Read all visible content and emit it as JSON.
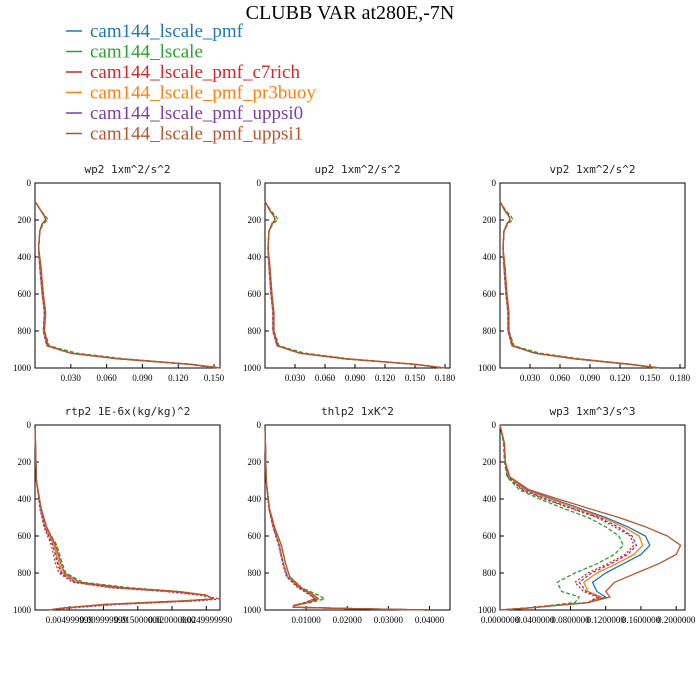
{
  "figure_title": "CLUBB VAR at280E,-7N",
  "legend": [
    {
      "label": "cam144_lscale_pmf",
      "color": "#1f77b4"
    },
    {
      "label": "cam144_lscale",
      "color": "#2ca02c"
    },
    {
      "label": "cam144_lscale_pmf_c7rich",
      "color": "#d62728"
    },
    {
      "label": "cam144_lscale_pmf_pr3buoy",
      "color": "#ff7f0e"
    },
    {
      "label": "cam144_lscale_pmf_uppsi0",
      "color": "#7b3fa0"
    },
    {
      "label": "cam144_lscale_pmf_uppsi1",
      "color": "#b5562d"
    }
  ],
  "chart_data": [
    {
      "type": "line",
      "title": "wp2 1xm^2/s^2",
      "ylim": [
        1000,
        0
      ],
      "yticks": [
        "0",
        "200",
        "400",
        "600",
        "800",
        "1000"
      ],
      "xlim": [
        0,
        0.155
      ],
      "xticks": [
        0.03,
        0.06,
        0.09,
        0.12,
        0.15
      ],
      "xtick_labels": [
        "0.030",
        "0.060",
        "0.090",
        "0.120",
        "0.150"
      ],
      "y": [
        100,
        150,
        180,
        200,
        220,
        260,
        350,
        450,
        600,
        700,
        800,
        880,
        920,
        950,
        980,
        1000
      ],
      "series": [
        {
          "values": [
            0,
            0.005,
            0.008,
            0.009,
            0.006,
            0.004,
            0.003,
            0.004,
            0.006,
            0.008,
            0.007,
            0.01,
            0.03,
            0.07,
            0.13,
            0.155
          ]
        },
        {
          "values": [
            0,
            0.005,
            0.009,
            0.011,
            0.007,
            0.004,
            0.003,
            0.004,
            0.006,
            0.008,
            0.008,
            0.012,
            0.035,
            0.075,
            0.13,
            0.15
          ]
        },
        {
          "values": [
            0,
            0.005,
            0.008,
            0.009,
            0.006,
            0.004,
            0.003,
            0.004,
            0.006,
            0.008,
            0.007,
            0.01,
            0.03,
            0.07,
            0.13,
            0.155
          ]
        },
        {
          "values": [
            0,
            0.005,
            0.008,
            0.009,
            0.006,
            0.004,
            0.003,
            0.004,
            0.006,
            0.008,
            0.007,
            0.01,
            0.03,
            0.07,
            0.13,
            0.155
          ]
        },
        {
          "values": [
            0,
            0.005,
            0.008,
            0.009,
            0.006,
            0.004,
            0.003,
            0.004,
            0.006,
            0.008,
            0.007,
            0.01,
            0.03,
            0.07,
            0.13,
            0.155
          ]
        },
        {
          "values": [
            0,
            0.005,
            0.008,
            0.009,
            0.006,
            0.004,
            0.003,
            0.005,
            0.007,
            0.009,
            0.008,
            0.011,
            0.03,
            0.07,
            0.13,
            0.155
          ]
        }
      ]
    },
    {
      "type": "line",
      "title": "up2 1xm^2/s^2",
      "ylim": [
        1000,
        0
      ],
      "yticks": [
        "0",
        "200",
        "400",
        "600",
        "800",
        "1000"
      ],
      "xlim": [
        0,
        0.185
      ],
      "xticks": [
        0.03,
        0.06,
        0.09,
        0.12,
        0.15,
        0.18
      ],
      "xtick_labels": [
        "0.030",
        "0.060",
        "0.090",
        "0.120",
        "0.150",
        "0.180"
      ],
      "y": [
        100,
        150,
        180,
        200,
        220,
        260,
        350,
        450,
        600,
        700,
        800,
        880,
        920,
        950,
        980,
        1000
      ],
      "series": [
        {
          "values": [
            0,
            0.005,
            0.009,
            0.01,
            0.007,
            0.004,
            0.003,
            0.004,
            0.006,
            0.008,
            0.008,
            0.012,
            0.035,
            0.08,
            0.15,
            0.18
          ]
        },
        {
          "values": [
            0,
            0.006,
            0.011,
            0.013,
            0.008,
            0.004,
            0.003,
            0.004,
            0.006,
            0.008,
            0.009,
            0.014,
            0.04,
            0.085,
            0.15,
            0.175
          ]
        },
        {
          "values": [
            0,
            0.005,
            0.009,
            0.01,
            0.007,
            0.004,
            0.003,
            0.004,
            0.006,
            0.008,
            0.008,
            0.012,
            0.035,
            0.08,
            0.15,
            0.18
          ]
        },
        {
          "values": [
            0,
            0.005,
            0.009,
            0.01,
            0.007,
            0.004,
            0.003,
            0.004,
            0.006,
            0.008,
            0.008,
            0.012,
            0.035,
            0.08,
            0.15,
            0.18
          ]
        },
        {
          "values": [
            0,
            0.005,
            0.009,
            0.01,
            0.007,
            0.004,
            0.003,
            0.004,
            0.006,
            0.008,
            0.008,
            0.012,
            0.035,
            0.08,
            0.15,
            0.18
          ]
        },
        {
          "values": [
            0,
            0.005,
            0.009,
            0.01,
            0.007,
            0.004,
            0.003,
            0.005,
            0.007,
            0.009,
            0.009,
            0.013,
            0.035,
            0.08,
            0.15,
            0.18
          ]
        }
      ]
    },
    {
      "type": "line",
      "title": "vp2 1xm^2/s^2",
      "ylim": [
        1000,
        0
      ],
      "yticks": [
        "0",
        "200",
        "400",
        "600",
        "800",
        "1000"
      ],
      "xlim": [
        0,
        0.185
      ],
      "xticks": [
        0.03,
        0.06,
        0.09,
        0.12,
        0.15,
        0.18
      ],
      "xtick_labels": [
        "0.030",
        "0.060",
        "0.090",
        "0.120",
        "0.150",
        "0.180"
      ],
      "y": [
        100,
        150,
        180,
        200,
        220,
        260,
        350,
        450,
        600,
        700,
        800,
        880,
        920,
        950,
        980,
        1000
      ],
      "series": [
        {
          "values": [
            0,
            0.005,
            0.009,
            0.01,
            0.007,
            0.004,
            0.003,
            0.004,
            0.006,
            0.008,
            0.008,
            0.012,
            0.035,
            0.075,
            0.13,
            0.16
          ]
        },
        {
          "values": [
            0,
            0.006,
            0.011,
            0.013,
            0.008,
            0.004,
            0.003,
            0.004,
            0.006,
            0.008,
            0.009,
            0.014,
            0.04,
            0.08,
            0.13,
            0.155
          ]
        },
        {
          "values": [
            0,
            0.005,
            0.009,
            0.01,
            0.007,
            0.004,
            0.003,
            0.004,
            0.006,
            0.008,
            0.008,
            0.012,
            0.035,
            0.075,
            0.13,
            0.16
          ]
        },
        {
          "values": [
            0,
            0.005,
            0.009,
            0.01,
            0.007,
            0.004,
            0.003,
            0.004,
            0.006,
            0.008,
            0.008,
            0.012,
            0.035,
            0.075,
            0.13,
            0.16
          ]
        },
        {
          "values": [
            0,
            0.005,
            0.009,
            0.01,
            0.007,
            0.004,
            0.003,
            0.004,
            0.006,
            0.008,
            0.008,
            0.012,
            0.035,
            0.075,
            0.13,
            0.16
          ]
        },
        {
          "values": [
            0,
            0.005,
            0.009,
            0.01,
            0.007,
            0.004,
            0.003,
            0.005,
            0.007,
            0.009,
            0.009,
            0.013,
            0.035,
            0.075,
            0.13,
            0.16
          ]
        }
      ]
    },
    {
      "type": "line",
      "title": "rtp2 1E-6x(kg/kg)^2",
      "ylim": [
        1000,
        0
      ],
      "yticks": [
        "0",
        "200",
        "400",
        "600",
        "800",
        "1000"
      ],
      "xlim": [
        0,
        0.027
      ],
      "xticks": [
        0.005,
        0.01,
        0.015,
        0.02,
        0.025
      ],
      "xtick_labels": [
        "0.004999999",
        "0.009999999",
        "0.015000000",
        "0.020000000",
        "0.0249999990"
      ],
      "y": [
        0,
        300,
        450,
        550,
        650,
        750,
        800,
        850,
        880,
        900,
        920,
        940,
        950,
        970,
        990,
        1000
      ],
      "series": [
        {
          "values": [
            0,
            0.0002,
            0.0008,
            0.0015,
            0.0028,
            0.0035,
            0.004,
            0.006,
            0.012,
            0.02,
            0.025,
            0.026,
            0.022,
            0.01,
            0.004,
            0.002
          ]
        },
        {
          "values": [
            0,
            0.0002,
            0.0008,
            0.0016,
            0.0032,
            0.004,
            0.0045,
            0.007,
            0.014,
            0.021,
            0.025,
            0.026,
            0.022,
            0.01,
            0.004,
            0.002
          ]
        },
        {
          "values": [
            0,
            0.0002,
            0.0007,
            0.0013,
            0.0024,
            0.003,
            0.0035,
            0.0055,
            0.011,
            0.019,
            0.024,
            0.027,
            0.024,
            0.012,
            0.005,
            0.002
          ]
        },
        {
          "values": [
            0,
            0.0002,
            0.0008,
            0.0015,
            0.0028,
            0.0035,
            0.004,
            0.006,
            0.012,
            0.02,
            0.025,
            0.026,
            0.022,
            0.01,
            0.004,
            0.002
          ]
        },
        {
          "values": [
            0,
            0.0002,
            0.0008,
            0.0014,
            0.0026,
            0.0033,
            0.0038,
            0.0058,
            0.012,
            0.02,
            0.025,
            0.026,
            0.023,
            0.011,
            0.004,
            0.002
          ]
        },
        {
          "values": [
            0,
            0.0002,
            0.0009,
            0.0017,
            0.003,
            0.0038,
            0.0043,
            0.0065,
            0.013,
            0.021,
            0.025,
            0.026,
            0.022,
            0.01,
            0.004,
            0.002
          ]
        }
      ]
    },
    {
      "type": "line",
      "title": "thlp2 1xK^2",
      "ylim": [
        1000,
        0
      ],
      "yticks": [
        "0",
        "200",
        "400",
        "600",
        "800",
        "1000"
      ],
      "xlim": [
        0,
        0.045
      ],
      "xticks": [
        0.01,
        0.02,
        0.03,
        0.04
      ],
      "xtick_labels": [
        "0.01000",
        "0.02000",
        "0.03000",
        "0.04000"
      ],
      "y": [
        0,
        300,
        450,
        550,
        650,
        750,
        820,
        880,
        920,
        940,
        960,
        975,
        985,
        992,
        1000
      ],
      "series": [
        {
          "values": [
            0,
            0.0003,
            0.001,
            0.002,
            0.0035,
            0.0045,
            0.0055,
            0.0085,
            0.0115,
            0.0125,
            0.01,
            0.007,
            0.007,
            0.02,
            0.04
          ]
        },
        {
          "values": [
            0,
            0.0003,
            0.001,
            0.0022,
            0.004,
            0.005,
            0.006,
            0.009,
            0.013,
            0.0145,
            0.011,
            0.0075,
            0.007,
            0.02,
            0.04
          ]
        },
        {
          "values": [
            0,
            0.0003,
            0.0009,
            0.0019,
            0.0033,
            0.0043,
            0.0052,
            0.008,
            0.011,
            0.012,
            0.0095,
            0.007,
            0.0068,
            0.02,
            0.04
          ]
        },
        {
          "values": [
            0,
            0.0003,
            0.001,
            0.002,
            0.0035,
            0.0045,
            0.0055,
            0.0085,
            0.0115,
            0.0125,
            0.01,
            0.007,
            0.007,
            0.02,
            0.04
          ]
        },
        {
          "values": [
            0,
            0.0003,
            0.001,
            0.002,
            0.0034,
            0.0044,
            0.0054,
            0.0083,
            0.0112,
            0.0122,
            0.0098,
            0.007,
            0.0069,
            0.02,
            0.04
          ]
        },
        {
          "values": [
            0,
            0.0003,
            0.0011,
            0.0023,
            0.004,
            0.005,
            0.006,
            0.0088,
            0.012,
            0.013,
            0.0105,
            0.0072,
            0.007,
            0.02,
            0.04
          ]
        }
      ]
    },
    {
      "type": "line",
      "title": "wp3 1xm^3/s^3",
      "ylim": [
        1000,
        0
      ],
      "yticks": [
        "0",
        "200",
        "400",
        "600",
        "800",
        "1000"
      ],
      "xlim": [
        0,
        0.21
      ],
      "xticks": [
        0,
        0.04,
        0.08,
        0.12,
        0.16,
        0.2
      ],
      "xtick_labels": [
        "0.0000000",
        "0.0400000",
        "0.0800000",
        "0.1200000",
        "0.1600000",
        "0.2000000"
      ],
      "y": [
        0,
        100,
        200,
        280,
        350,
        400,
        450,
        500,
        550,
        600,
        650,
        700,
        750,
        800,
        850,
        900,
        930,
        960,
        990,
        1000
      ],
      "series": [
        {
          "values": [
            0,
            0.005,
            0.006,
            0.01,
            0.03,
            0.06,
            0.09,
            0.12,
            0.145,
            0.165,
            0.17,
            0.16,
            0.14,
            0.12,
            0.105,
            0.11,
            0.12,
            0.1,
            0.03,
            0
          ]
        },
        {
          "values": [
            0,
            0.004,
            0.005,
            0.008,
            0.022,
            0.045,
            0.072,
            0.1,
            0.12,
            0.135,
            0.14,
            0.13,
            0.11,
            0.085,
            0.065,
            0.07,
            0.09,
            0.085,
            0.03,
            0
          ]
        },
        {
          "values": [
            0,
            0.005,
            0.006,
            0.009,
            0.025,
            0.05,
            0.08,
            0.11,
            0.13,
            0.148,
            0.152,
            0.142,
            0.122,
            0.1,
            0.085,
            0.095,
            0.11,
            0.1,
            0.03,
            0
          ]
        },
        {
          "values": [
            0,
            0.005,
            0.006,
            0.01,
            0.028,
            0.057,
            0.087,
            0.116,
            0.14,
            0.158,
            0.162,
            0.152,
            0.132,
            0.11,
            0.095,
            0.1,
            0.115,
            0.1,
            0.03,
            0
          ]
        },
        {
          "values": [
            0,
            0.005,
            0.006,
            0.009,
            0.026,
            0.052,
            0.082,
            0.112,
            0.134,
            0.15,
            0.155,
            0.145,
            0.126,
            0.104,
            0.09,
            0.098,
            0.112,
            0.1,
            0.03,
            0
          ]
        },
        {
          "values": [
            0,
            0.005,
            0.006,
            0.011,
            0.033,
            0.066,
            0.1,
            0.135,
            0.165,
            0.19,
            0.205,
            0.2,
            0.18,
            0.155,
            0.13,
            0.12,
            0.125,
            0.1,
            0.03,
            0
          ]
        }
      ]
    }
  ]
}
